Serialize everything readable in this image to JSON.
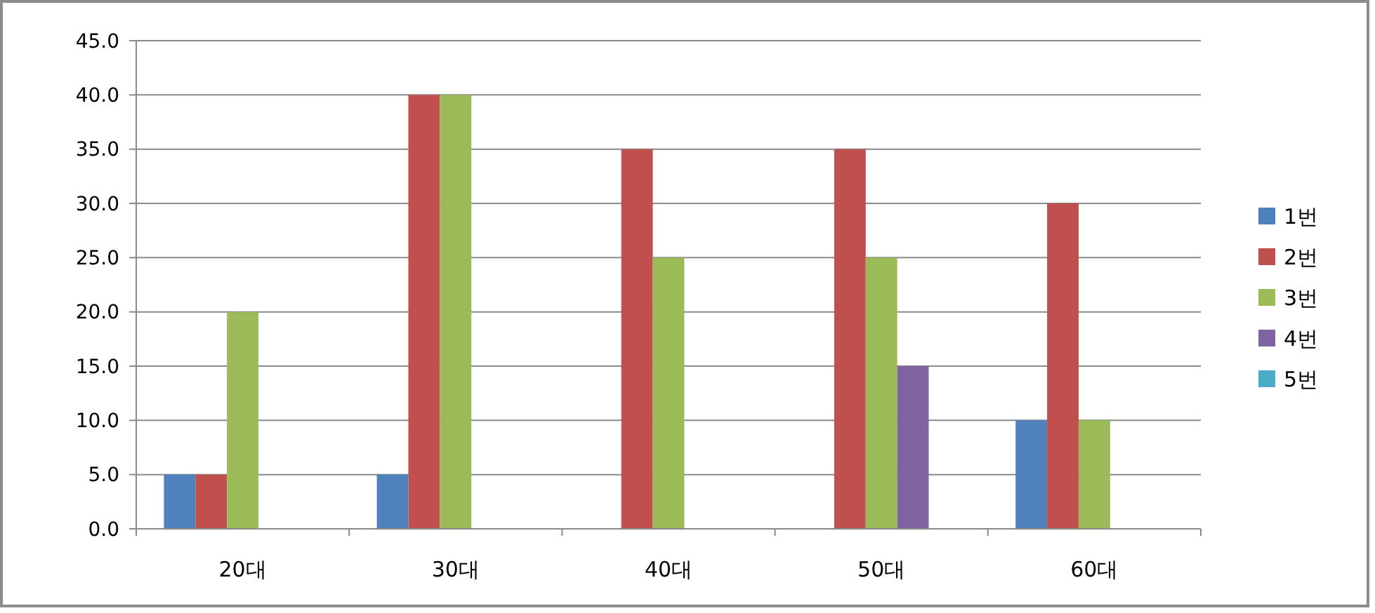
{
  "chart_data": {
    "type": "bar",
    "categories": [
      "20대",
      "30대",
      "40대",
      "50대",
      "60대"
    ],
    "series": [
      {
        "name": "1번",
        "color": "#4f81bd",
        "values": [
          5,
          5,
          0,
          0,
          10
        ]
      },
      {
        "name": "2번",
        "color": "#c0504d",
        "values": [
          5,
          40,
          35,
          35,
          30
        ]
      },
      {
        "name": "3번",
        "color": "#9bbb59",
        "values": [
          20,
          40,
          25,
          25,
          10
        ]
      },
      {
        "name": "4번",
        "color": "#8064a2",
        "values": [
          0,
          0,
          0,
          15,
          0
        ]
      },
      {
        "name": "5번",
        "color": "#4bacc6",
        "values": [
          0,
          0,
          0,
          0,
          0
        ]
      }
    ],
    "ylim": [
      0,
      45
    ],
    "yticks": [
      {
        "value": 0,
        "label": "0.0"
      },
      {
        "value": 5,
        "label": "5.0"
      },
      {
        "value": 10,
        "label": "10.0"
      },
      {
        "value": 15,
        "label": "15.0"
      },
      {
        "value": 20,
        "label": "20.0"
      },
      {
        "value": 25,
        "label": "25.0"
      },
      {
        "value": 30,
        "label": "30.0"
      },
      {
        "value": 35,
        "label": "35.0"
      },
      {
        "value": 40,
        "label": "40.0"
      },
      {
        "value": 45,
        "label": "45.0"
      }
    ],
    "grid": "y",
    "legend": "right"
  }
}
